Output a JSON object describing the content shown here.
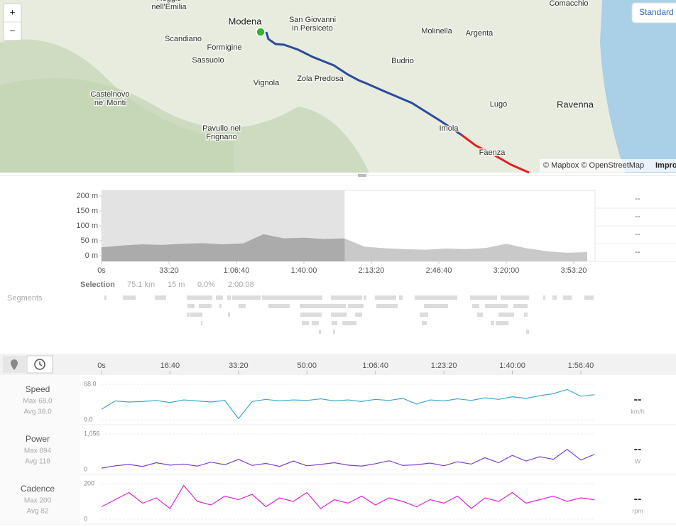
{
  "map": {
    "zoom_in": "+",
    "zoom_out": "−",
    "style_button": "Standard",
    "attribution": "© Mapbox © OpenStreetMap",
    "attribution_link": "Impro",
    "places": [
      [
        "Comacchio"
      ],
      [
        "Reggio",
        "nell'Emilia"
      ],
      [
        "Modena"
      ],
      [
        "San Giovanni",
        "in Persiceto"
      ],
      [
        "Molinella"
      ],
      [
        "Argenta"
      ],
      [
        "Scandiano"
      ],
      [
        "Formigine"
      ],
      [
        "Sassuolo"
      ],
      [
        "Budrio"
      ],
      [
        "Vignola"
      ],
      [
        "Zola Predosa"
      ],
      [
        "Castelnovo",
        "ne' Monti"
      ],
      [
        "Lugo"
      ],
      [
        "Ravenna"
      ],
      [
        "Imola"
      ],
      [
        "Pavullo nel",
        "Frignano"
      ],
      [
        "Faenza"
      ]
    ]
  },
  "elevation": {
    "type": "area",
    "color": "#c9c9c9",
    "selected_color": "#ababab",
    "xlim": [
      0,
      14632
    ],
    "ylim": [
      -19,
      219
    ],
    "yticks": [
      {
        "value": 200,
        "label": "200 m"
      },
      {
        "value": 150,
        "label": "150 m"
      },
      {
        "value": 100,
        "label": "100 m"
      },
      {
        "value": 50,
        "label": "50 m"
      },
      {
        "value": 0,
        "label": "0 m"
      }
    ],
    "xticks": [
      {
        "value": 0,
        "label": "0s"
      },
      {
        "value": 2000,
        "label": "33:20"
      },
      {
        "value": 4000,
        "label": "1:06:40"
      },
      {
        "value": 6000,
        "label": "1:40:00"
      },
      {
        "value": 8000,
        "label": "2:13:20"
      },
      {
        "value": 10000,
        "label": "2:46:40"
      },
      {
        "value": 12000,
        "label": "3:20:00"
      },
      {
        "value": 14000,
        "label": "3:53:20"
      }
    ],
    "x": [
      0,
      600,
      1200,
      1800,
      2400,
      3000,
      3600,
      4200,
      4800,
      5400,
      6000,
      6600,
      7200,
      7800,
      8400,
      9000,
      9600,
      10200,
      10800,
      11400,
      12000,
      12600,
      13200,
      13800,
      14400
    ],
    "values": [
      28,
      34,
      38,
      36,
      40,
      42,
      38,
      41,
      72,
      58,
      60,
      56,
      58,
      30,
      25,
      22,
      20,
      24,
      22,
      26,
      40,
      25,
      15,
      10,
      12
    ],
    "stats": [
      "--",
      "--",
      "--",
      "--"
    ]
  },
  "selection": {
    "label": "Selection",
    "distance": "75.1 km",
    "elevation": "15 m",
    "grade": "0.0%",
    "duration": "2:00:08",
    "range": [
      0,
      7208
    ]
  },
  "segments": {
    "label": "Segments"
  },
  "time_axis": {
    "xlim": [
      0,
      7208
    ],
    "xticks": [
      {
        "value": 0,
        "label": "0s"
      },
      {
        "value": 1000,
        "label": "16:40"
      },
      {
        "value": 2000,
        "label": "33:20"
      },
      {
        "value": 3000,
        "label": "50:00"
      },
      {
        "value": 4000,
        "label": "1:06:40"
      },
      {
        "value": 5000,
        "label": "1:23:20"
      },
      {
        "value": 6000,
        "label": "1:40:00"
      },
      {
        "value": 7000,
        "label": "1:56:40"
      }
    ],
    "x": [
      0,
      200,
      400,
      600,
      800,
      1000,
      1200,
      1400,
      1600,
      1800,
      2000,
      2200,
      2400,
      2600,
      2800,
      3000,
      3200,
      3400,
      3600,
      3800,
      4000,
      4200,
      4400,
      4600,
      4800,
      5000,
      5200,
      5400,
      5600,
      5800,
      6000,
      6200,
      6400,
      6600,
      6800,
      7000,
      7200
    ]
  },
  "charts": [
    {
      "type": "line",
      "name": "Speed",
      "max": "Max 68.0",
      "avg": "Avg 38.0",
      "color": "#3aa8d0",
      "ylim": [
        0,
        68
      ],
      "yticks": [
        {
          "value": 68,
          "label": "68.0"
        },
        {
          "value": 0,
          "label": "0.0"
        }
      ],
      "values": [
        20,
        36,
        34,
        35,
        37,
        33,
        38,
        36,
        34,
        37,
        2,
        35,
        39,
        36,
        38,
        37,
        40,
        36,
        38,
        35,
        39,
        37,
        41,
        30,
        38,
        36,
        40,
        37,
        42,
        39,
        44,
        41,
        46,
        50,
        58,
        45,
        48
      ],
      "current": "--",
      "unit": "km/h"
    },
    {
      "type": "line",
      "name": "Power",
      "max": "Max 894",
      "avg": "Avg 118",
      "color": "#7b3fd0",
      "ylim": [
        0,
        1056
      ],
      "yticks": [
        {
          "value": 1056,
          "label": "1,056"
        },
        0
      ],
      "values": [
        40,
        110,
        150,
        90,
        200,
        130,
        160,
        100,
        220,
        140,
        300,
        120,
        180,
        90,
        250,
        110,
        150,
        200,
        130,
        100,
        170,
        260,
        120,
        140,
        190,
        110,
        230,
        160,
        350,
        200,
        420,
        250,
        380,
        300,
        600,
        280,
        450
      ],
      "current": "--",
      "unit": "W"
    },
    {
      "type": "line",
      "name": "Cadence",
      "max": "Max 200",
      "avg": "Avg 82",
      "color": "#e020d8",
      "ylim": [
        0,
        200
      ],
      "yticks": [
        200,
        0
      ],
      "values": [
        70,
        110,
        150,
        90,
        120,
        60,
        190,
        100,
        80,
        130,
        110,
        140,
        70,
        120,
        100,
        150,
        60,
        110,
        90,
        130,
        80,
        120,
        100,
        70,
        110,
        90,
        130,
        60,
        120,
        100,
        150,
        90,
        110,
        130,
        100,
        120,
        110
      ],
      "current": "--",
      "unit": "rpm"
    }
  ]
}
